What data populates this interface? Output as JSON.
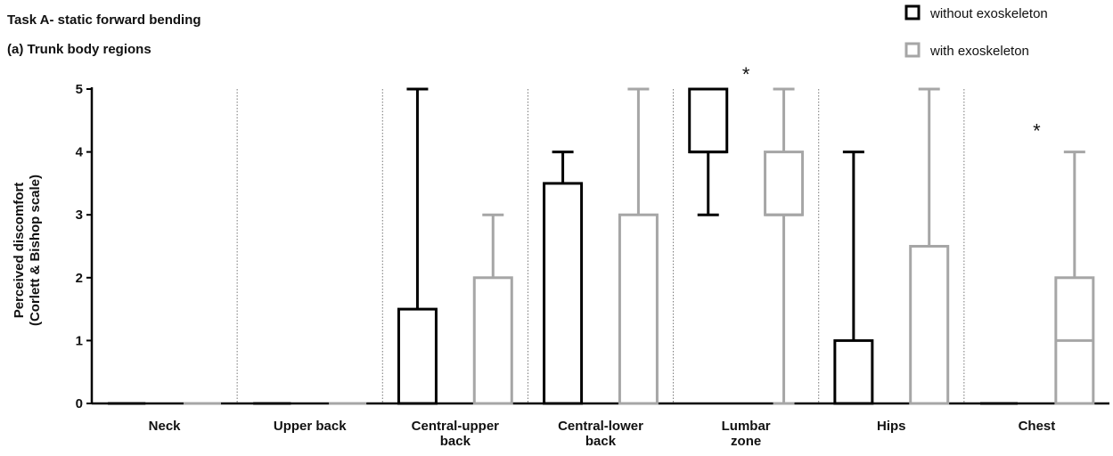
{
  "titles": {
    "main": "Task A- static forward bending",
    "sub": "(a) Trunk body regions"
  },
  "colors": {
    "without": "#000000",
    "with": "#a6a6a6",
    "divider": "#777777"
  },
  "chart_data": {
    "type": "box",
    "title": "Task A- static forward bending",
    "subtitle": "(a) Trunk body regions",
    "ylabel": [
      "Perceived discomfort",
      "(Corlett & Bishop scale)"
    ],
    "ylim": [
      0,
      5
    ],
    "yticks": [
      "0",
      "1",
      "2",
      "3",
      "4",
      "5"
    ],
    "grid": false,
    "legend_position": "top-right",
    "categories": [
      [
        "Neck"
      ],
      [
        "Upper back"
      ],
      [
        "Central-upper",
        "back"
      ],
      [
        "Central-lower",
        "back"
      ],
      [
        "Lumbar",
        "zone"
      ],
      [
        "Hips"
      ],
      [
        "Chest"
      ]
    ],
    "series": [
      {
        "name": "without exoskeleton",
        "color": "#000000",
        "boxes": [
          {
            "min": 0,
            "q1": 0,
            "median": 0,
            "q3": 0,
            "max": 0
          },
          {
            "min": 0,
            "q1": 0,
            "median": 0,
            "q3": 0,
            "max": 0
          },
          {
            "min": 0,
            "q1": 0,
            "median": 0,
            "q3": 1.5,
            "max": 5
          },
          {
            "min": 0,
            "q1": 0,
            "median": 0,
            "q3": 3.5,
            "max": 4
          },
          {
            "min": 3,
            "q1": 4,
            "median": 4,
            "q3": 5,
            "max": 5
          },
          {
            "min": 0,
            "q1": 0,
            "median": 0,
            "q3": 1,
            "max": 4
          },
          {
            "min": 0,
            "q1": 0,
            "median": 0,
            "q3": 0,
            "max": 0
          }
        ]
      },
      {
        "name": "with exoskeleton",
        "color": "#a6a6a6",
        "boxes": [
          {
            "min": 0,
            "q1": 0,
            "median": 0,
            "q3": 0,
            "max": 0
          },
          {
            "min": 0,
            "q1": 0,
            "median": 0,
            "q3": 0,
            "max": 0
          },
          {
            "min": 0,
            "q1": 0,
            "median": 0,
            "q3": 2,
            "max": 3
          },
          {
            "min": 0,
            "q1": 0,
            "median": 0,
            "q3": 3,
            "max": 5
          },
          {
            "min": 0,
            "q1": 3,
            "median": 3,
            "q3": 4,
            "max": 5
          },
          {
            "min": 0,
            "q1": 0,
            "median": 0,
            "q3": 2.5,
            "max": 5
          },
          {
            "min": 0,
            "q1": 0,
            "median": 1,
            "q3": 2,
            "max": 4
          }
        ]
      }
    ],
    "annotations": [
      {
        "text": "*",
        "category_index": 4,
        "y": 5.3
      },
      {
        "text": "*",
        "category_index": 6,
        "y": 4.4
      }
    ]
  }
}
